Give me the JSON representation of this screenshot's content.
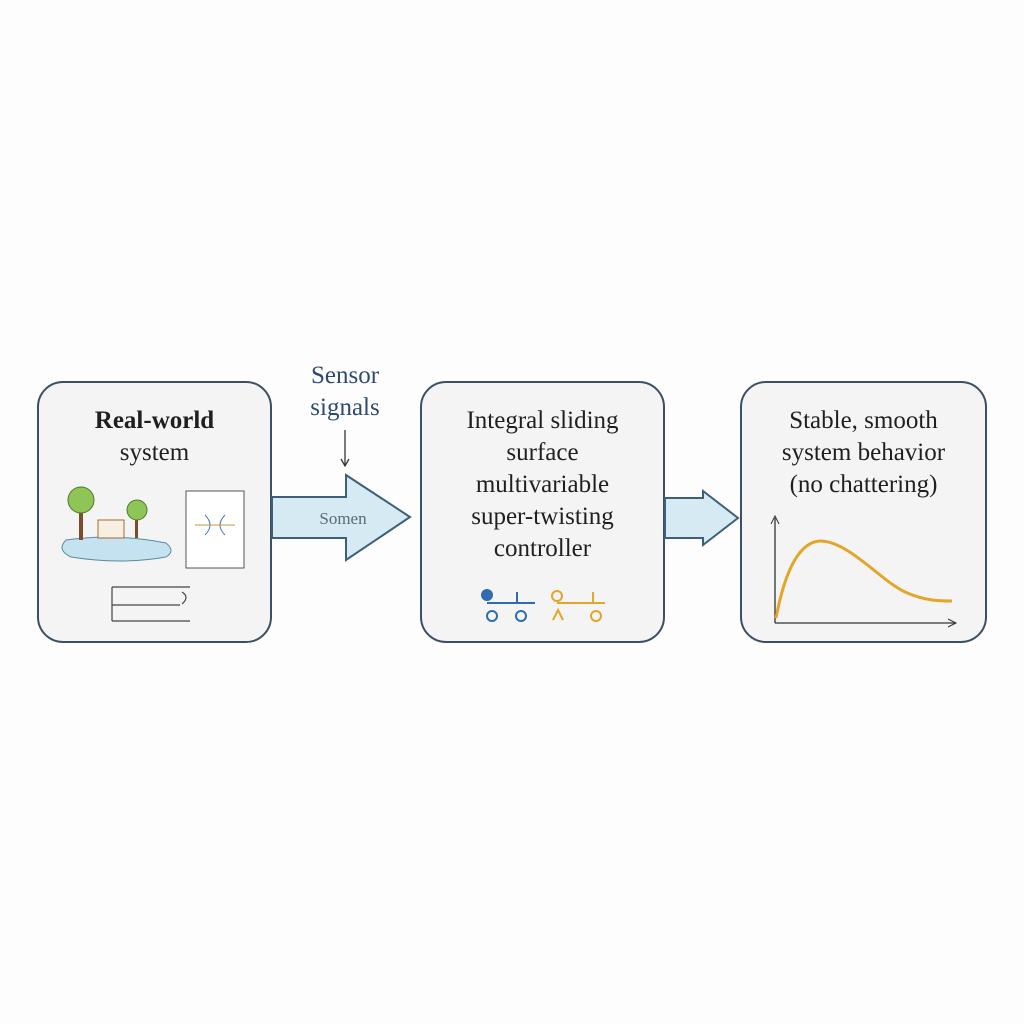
{
  "boxes": [
    {
      "title_line1": "Real-world",
      "title_line2": "system"
    },
    {
      "title_lines": [
        "Integral sliding",
        "surface",
        "multivariable",
        "super-twisting",
        "controller"
      ]
    },
    {
      "title_lines": [
        "Stable, smooth",
        "system behavior",
        "(no chattering)"
      ]
    }
  ],
  "sensor_label_line1": "Sensor",
  "sensor_label_line2": "signals",
  "arrow_text": "Somen",
  "colors": {
    "border": "#3d4f63",
    "arrow_fill": "#d6eaf3",
    "curve": "#e3a52a",
    "blue": "#2f6db0",
    "orange": "#e3a52a"
  }
}
